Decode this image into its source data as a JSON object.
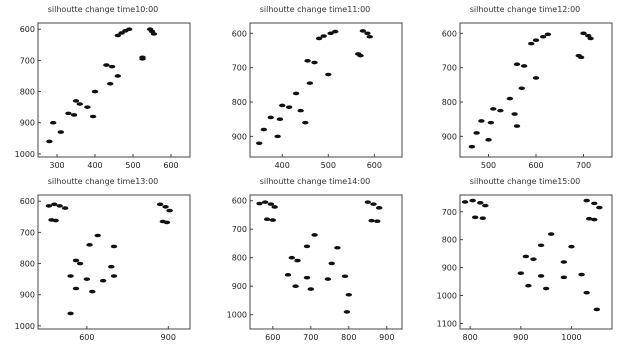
{
  "chart_data": [
    {
      "type": "scatter",
      "title": "silhoutte change time10:00",
      "xticks": [
        "300",
        "400",
        "500",
        "600"
      ],
      "yticks": [
        "600",
        "700",
        "800",
        "900",
        "1000"
      ],
      "xlim": [
        250,
        650
      ],
      "ylim": [
        580,
        1010
      ],
      "y_inverted": true,
      "grid": false,
      "series": [
        {
          "values": [
            {
              "x": 460,
              "y": 620
            },
            {
              "x": 470,
              "y": 612
            },
            {
              "x": 480,
              "y": 605
            },
            {
              "x": 490,
              "y": 600
            },
            {
              "x": 545,
              "y": 600
            },
            {
              "x": 550,
              "y": 607
            },
            {
              "x": 555,
              "y": 615
            },
            {
              "x": 525,
              "y": 690
            },
            {
              "x": 525,
              "y": 695
            },
            {
              "x": 430,
              "y": 715
            },
            {
              "x": 445,
              "y": 720
            },
            {
              "x": 460,
              "y": 750
            },
            {
              "x": 440,
              "y": 775
            },
            {
              "x": 400,
              "y": 800
            },
            {
              "x": 350,
              "y": 830
            },
            {
              "x": 360,
              "y": 840
            },
            {
              "x": 380,
              "y": 850
            },
            {
              "x": 330,
              "y": 870
            },
            {
              "x": 345,
              "y": 875
            },
            {
              "x": 395,
              "y": 880
            },
            {
              "x": 290,
              "y": 900
            },
            {
              "x": 310,
              "y": 930
            },
            {
              "x": 280,
              "y": 960
            }
          ]
        }
      ]
    },
    {
      "type": "scatter",
      "title": "silhoutte change time11:00",
      "xticks": [
        "400",
        "500",
        "600"
      ],
      "yticks": [
        "600",
        "700",
        "800",
        "900"
      ],
      "xlim": [
        330,
        660
      ],
      "ylim": [
        570,
        960
      ],
      "y_inverted": true,
      "grid": false,
      "series": [
        {
          "values": [
            {
              "x": 480,
              "y": 615
            },
            {
              "x": 490,
              "y": 608
            },
            {
              "x": 505,
              "y": 600
            },
            {
              "x": 515,
              "y": 595
            },
            {
              "x": 575,
              "y": 593
            },
            {
              "x": 585,
              "y": 600
            },
            {
              "x": 590,
              "y": 610
            },
            {
              "x": 565,
              "y": 660
            },
            {
              "x": 570,
              "y": 665
            },
            {
              "x": 455,
              "y": 680
            },
            {
              "x": 470,
              "y": 685
            },
            {
              "x": 500,
              "y": 720
            },
            {
              "x": 460,
              "y": 745
            },
            {
              "x": 430,
              "y": 775
            },
            {
              "x": 400,
              "y": 810
            },
            {
              "x": 415,
              "y": 815
            },
            {
              "x": 440,
              "y": 825
            },
            {
              "x": 375,
              "y": 845
            },
            {
              "x": 395,
              "y": 850
            },
            {
              "x": 450,
              "y": 860
            },
            {
              "x": 360,
              "y": 880
            },
            {
              "x": 390,
              "y": 900
            },
            {
              "x": 350,
              "y": 920
            }
          ]
        }
      ]
    },
    {
      "type": "scatter",
      "title": "silhoutte change time12:00",
      "xticks": [
        "500",
        "600",
        "700"
      ],
      "yticks": [
        "600",
        "700",
        "800",
        "900"
      ],
      "xlim": [
        440,
        760
      ],
      "ylim": [
        570,
        960
      ],
      "y_inverted": true,
      "grid": false,
      "series": [
        {
          "values": [
            {
              "x": 590,
              "y": 630
            },
            {
              "x": 600,
              "y": 620
            },
            {
              "x": 615,
              "y": 610
            },
            {
              "x": 625,
              "y": 603
            },
            {
              "x": 700,
              "y": 600
            },
            {
              "x": 710,
              "y": 607
            },
            {
              "x": 715,
              "y": 615
            },
            {
              "x": 690,
              "y": 665
            },
            {
              "x": 695,
              "y": 670
            },
            {
              "x": 560,
              "y": 690
            },
            {
              "x": 575,
              "y": 695
            },
            {
              "x": 600,
              "y": 730
            },
            {
              "x": 570,
              "y": 760
            },
            {
              "x": 545,
              "y": 790
            },
            {
              "x": 510,
              "y": 820
            },
            {
              "x": 525,
              "y": 825
            },
            {
              "x": 555,
              "y": 835
            },
            {
              "x": 485,
              "y": 855
            },
            {
              "x": 505,
              "y": 860
            },
            {
              "x": 560,
              "y": 870
            },
            {
              "x": 475,
              "y": 890
            },
            {
              "x": 500,
              "y": 910
            },
            {
              "x": 465,
              "y": 930
            }
          ]
        }
      ]
    },
    {
      "type": "scatter",
      "title": "silhoutte change time13:00",
      "xticks": [
        "600",
        "900"
      ],
      "yticks": [
        "600",
        "700",
        "800",
        "900",
        "1000"
      ],
      "xlim": [
        420,
        980
      ],
      "ylim": [
        580,
        1010
      ],
      "y_inverted": true,
      "grid": false,
      "series": [
        {
          "values": [
            {
              "x": 460,
              "y": 615
            },
            {
              "x": 480,
              "y": 610
            },
            {
              "x": 500,
              "y": 615
            },
            {
              "x": 520,
              "y": 622
            },
            {
              "x": 870,
              "y": 610
            },
            {
              "x": 890,
              "y": 618
            },
            {
              "x": 905,
              "y": 630
            },
            {
              "x": 470,
              "y": 660
            },
            {
              "x": 485,
              "y": 662
            },
            {
              "x": 880,
              "y": 665
            },
            {
              "x": 895,
              "y": 668
            },
            {
              "x": 640,
              "y": 710
            },
            {
              "x": 610,
              "y": 740
            },
            {
              "x": 700,
              "y": 745
            },
            {
              "x": 560,
              "y": 790
            },
            {
              "x": 575,
              "y": 800
            },
            {
              "x": 690,
              "y": 810
            },
            {
              "x": 540,
              "y": 840
            },
            {
              "x": 600,
              "y": 850
            },
            {
              "x": 660,
              "y": 855
            },
            {
              "x": 700,
              "y": 840
            },
            {
              "x": 560,
              "y": 880
            },
            {
              "x": 620,
              "y": 890
            },
            {
              "x": 540,
              "y": 960
            }
          ]
        }
      ]
    },
    {
      "type": "scatter",
      "title": "silhoutte change time14:00",
      "xticks": [
        "600",
        "700",
        "800",
        "900"
      ],
      "yticks": [
        "600",
        "700",
        "800",
        "900",
        "1000"
      ],
      "xlim": [
        540,
        940
      ],
      "ylim": [
        580,
        1050
      ],
      "y_inverted": true,
      "grid": false,
      "series": [
        {
          "values": [
            {
              "x": 565,
              "y": 610
            },
            {
              "x": 580,
              "y": 605
            },
            {
              "x": 595,
              "y": 612
            },
            {
              "x": 605,
              "y": 622
            },
            {
              "x": 850,
              "y": 605
            },
            {
              "x": 865,
              "y": 612
            },
            {
              "x": 880,
              "y": 625
            },
            {
              "x": 585,
              "y": 665
            },
            {
              "x": 600,
              "y": 668
            },
            {
              "x": 860,
              "y": 670
            },
            {
              "x": 875,
              "y": 672
            },
            {
              "x": 710,
              "y": 720
            },
            {
              "x": 690,
              "y": 760
            },
            {
              "x": 770,
              "y": 765
            },
            {
              "x": 650,
              "y": 800
            },
            {
              "x": 665,
              "y": 810
            },
            {
              "x": 755,
              "y": 820
            },
            {
              "x": 640,
              "y": 860
            },
            {
              "x": 690,
              "y": 870
            },
            {
              "x": 745,
              "y": 875
            },
            {
              "x": 790,
              "y": 865
            },
            {
              "x": 660,
              "y": 900
            },
            {
              "x": 700,
              "y": 910
            },
            {
              "x": 800,
              "y": 930
            },
            {
              "x": 795,
              "y": 990
            }
          ]
        }
      ]
    },
    {
      "type": "scatter",
      "title": "silhoutte change time15:00",
      "xticks": [
        "800",
        "900",
        "1000"
      ],
      "yticks": [
        "700",
        "800",
        "900",
        "1000",
        "1100"
      ],
      "xlim": [
        780,
        1080
      ],
      "ylim": [
        640,
        1120
      ],
      "y_inverted": true,
      "grid": false,
      "series": [
        {
          "values": [
            {
              "x": 790,
              "y": 665
            },
            {
              "x": 805,
              "y": 660
            },
            {
              "x": 820,
              "y": 668
            },
            {
              "x": 830,
              "y": 678
            },
            {
              "x": 1030,
              "y": 660
            },
            {
              "x": 1045,
              "y": 670
            },
            {
              "x": 1055,
              "y": 685
            },
            {
              "x": 810,
              "y": 720
            },
            {
              "x": 825,
              "y": 723
            },
            {
              "x": 1035,
              "y": 725
            },
            {
              "x": 1045,
              "y": 728
            },
            {
              "x": 960,
              "y": 780
            },
            {
              "x": 940,
              "y": 820
            },
            {
              "x": 1000,
              "y": 825
            },
            {
              "x": 910,
              "y": 860
            },
            {
              "x": 925,
              "y": 870
            },
            {
              "x": 985,
              "y": 880
            },
            {
              "x": 900,
              "y": 920
            },
            {
              "x": 940,
              "y": 930
            },
            {
              "x": 985,
              "y": 935
            },
            {
              "x": 1020,
              "y": 925
            },
            {
              "x": 915,
              "y": 965
            },
            {
              "x": 950,
              "y": 975
            },
            {
              "x": 1030,
              "y": 990
            },
            {
              "x": 1050,
              "y": 1050
            }
          ]
        }
      ]
    }
  ]
}
